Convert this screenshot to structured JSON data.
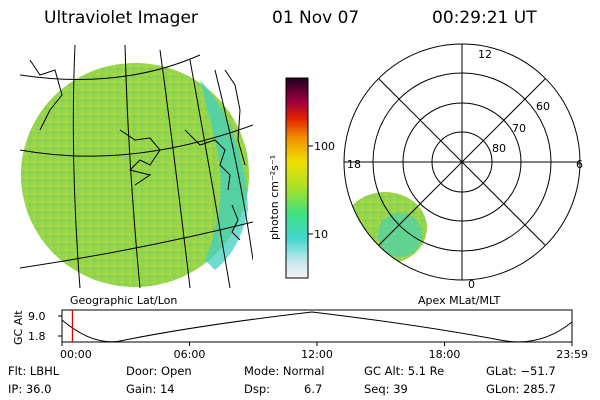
{
  "header": {
    "title": "Ultraviolet Imager",
    "date": "01 Nov 07",
    "time": "00:29:21 UT"
  },
  "colorbar": {
    "unit_label": "photon cm⁻²s⁻¹",
    "ticks": [
      "100",
      "10"
    ]
  },
  "geo_panel": {
    "label": "Geographic Lat/Lon"
  },
  "polar_panel": {
    "label": "Apex MLat/MLT",
    "mlt_labels": {
      "top": "12",
      "left": "18",
      "right": "6",
      "bottom": "0"
    },
    "lat_labels": [
      "60",
      "70",
      "80"
    ]
  },
  "timeline": {
    "ylabel": "GC Alt",
    "y_ticks": [
      "9.0",
      "1.8"
    ],
    "x_ticks": [
      "00:00",
      "06:00",
      "12:00",
      "18:00",
      "23:59"
    ],
    "marker_time": "00:29:21"
  },
  "info": {
    "row1": {
      "flt": "Flt: LBHL",
      "door": "Door: Open",
      "mode": "Mode: Normal",
      "gcalt": "GC Alt: 5.1 Re",
      "glat": "GLat: −51.7"
    },
    "row2": {
      "ip": "IP: 36.0",
      "gain": "Gain: 14",
      "dsp_label": "Dsp:",
      "dsp_value": "6.7",
      "seq": "Seq: 39",
      "glon": "GLon: 285.7"
    }
  },
  "colors": {
    "image_fill": "#8fd24a",
    "image_edge": "#3fd0c8",
    "marker": "#e00000"
  }
}
